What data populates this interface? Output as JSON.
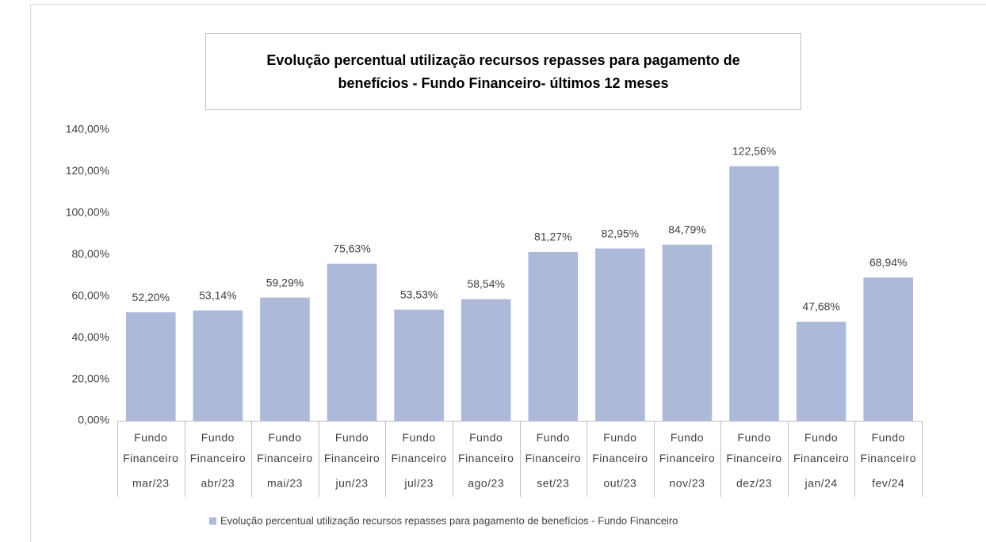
{
  "chart_data": {
    "type": "bar",
    "title": [
      "Evolução percentual utilização recursos repasses para pagamento de",
      "benefícios - Fundo Financeiro- últimos 12 meses"
    ],
    "categories": [
      "mar/23",
      "abr/23",
      "mai/23",
      "jun/23",
      "jul/23",
      "ago/23",
      "set/23",
      "out/23",
      "nov/23",
      "dez/23",
      "jan/24",
      "fev/24"
    ],
    "category_groups": [
      "Fundo Financeiro",
      "Fundo Financeiro",
      "Fundo Financeiro",
      "Fundo Financeiro",
      "Fundo Financeiro",
      "Fundo Financeiro",
      "Fundo Financeiro",
      "Fundo Financeiro",
      "Fundo Financeiro",
      "Fundo Financeiro",
      "Fundo Financeiro",
      "Fundo Financeiro"
    ],
    "series": [
      {
        "name": "Evolução percentual utilização recursos repasses para pagamento de benefícios - Fundo Financeiro",
        "color": "#adb9d8",
        "values": [
          52.2,
          53.14,
          59.29,
          75.63,
          53.53,
          58.54,
          81.27,
          82.95,
          84.79,
          122.56,
          47.68,
          68.94
        ],
        "value_labels": [
          "52,20%",
          "53,14%",
          "59,29%",
          "75,63%",
          "53,53%",
          "58,54%",
          "81,27%",
          "82,95%",
          "84,79%",
          "122,56%",
          "47,68%",
          "68,94%"
        ]
      }
    ],
    "ylim": [
      0,
      140
    ],
    "yticks": [
      {
        "value": 0,
        "label": "0,00%"
      },
      {
        "value": 20,
        "label": "20,00%"
      },
      {
        "value": 40,
        "label": "40,00%"
      },
      {
        "value": 60,
        "label": "60,00%"
      },
      {
        "value": 80,
        "label": "80,00%"
      },
      {
        "value": 100,
        "label": "100,00%"
      },
      {
        "value": 120,
        "label": "120,00%"
      },
      {
        "value": 140,
        "label": "140,00%"
      }
    ],
    "grid": false,
    "legend": "bottom"
  }
}
